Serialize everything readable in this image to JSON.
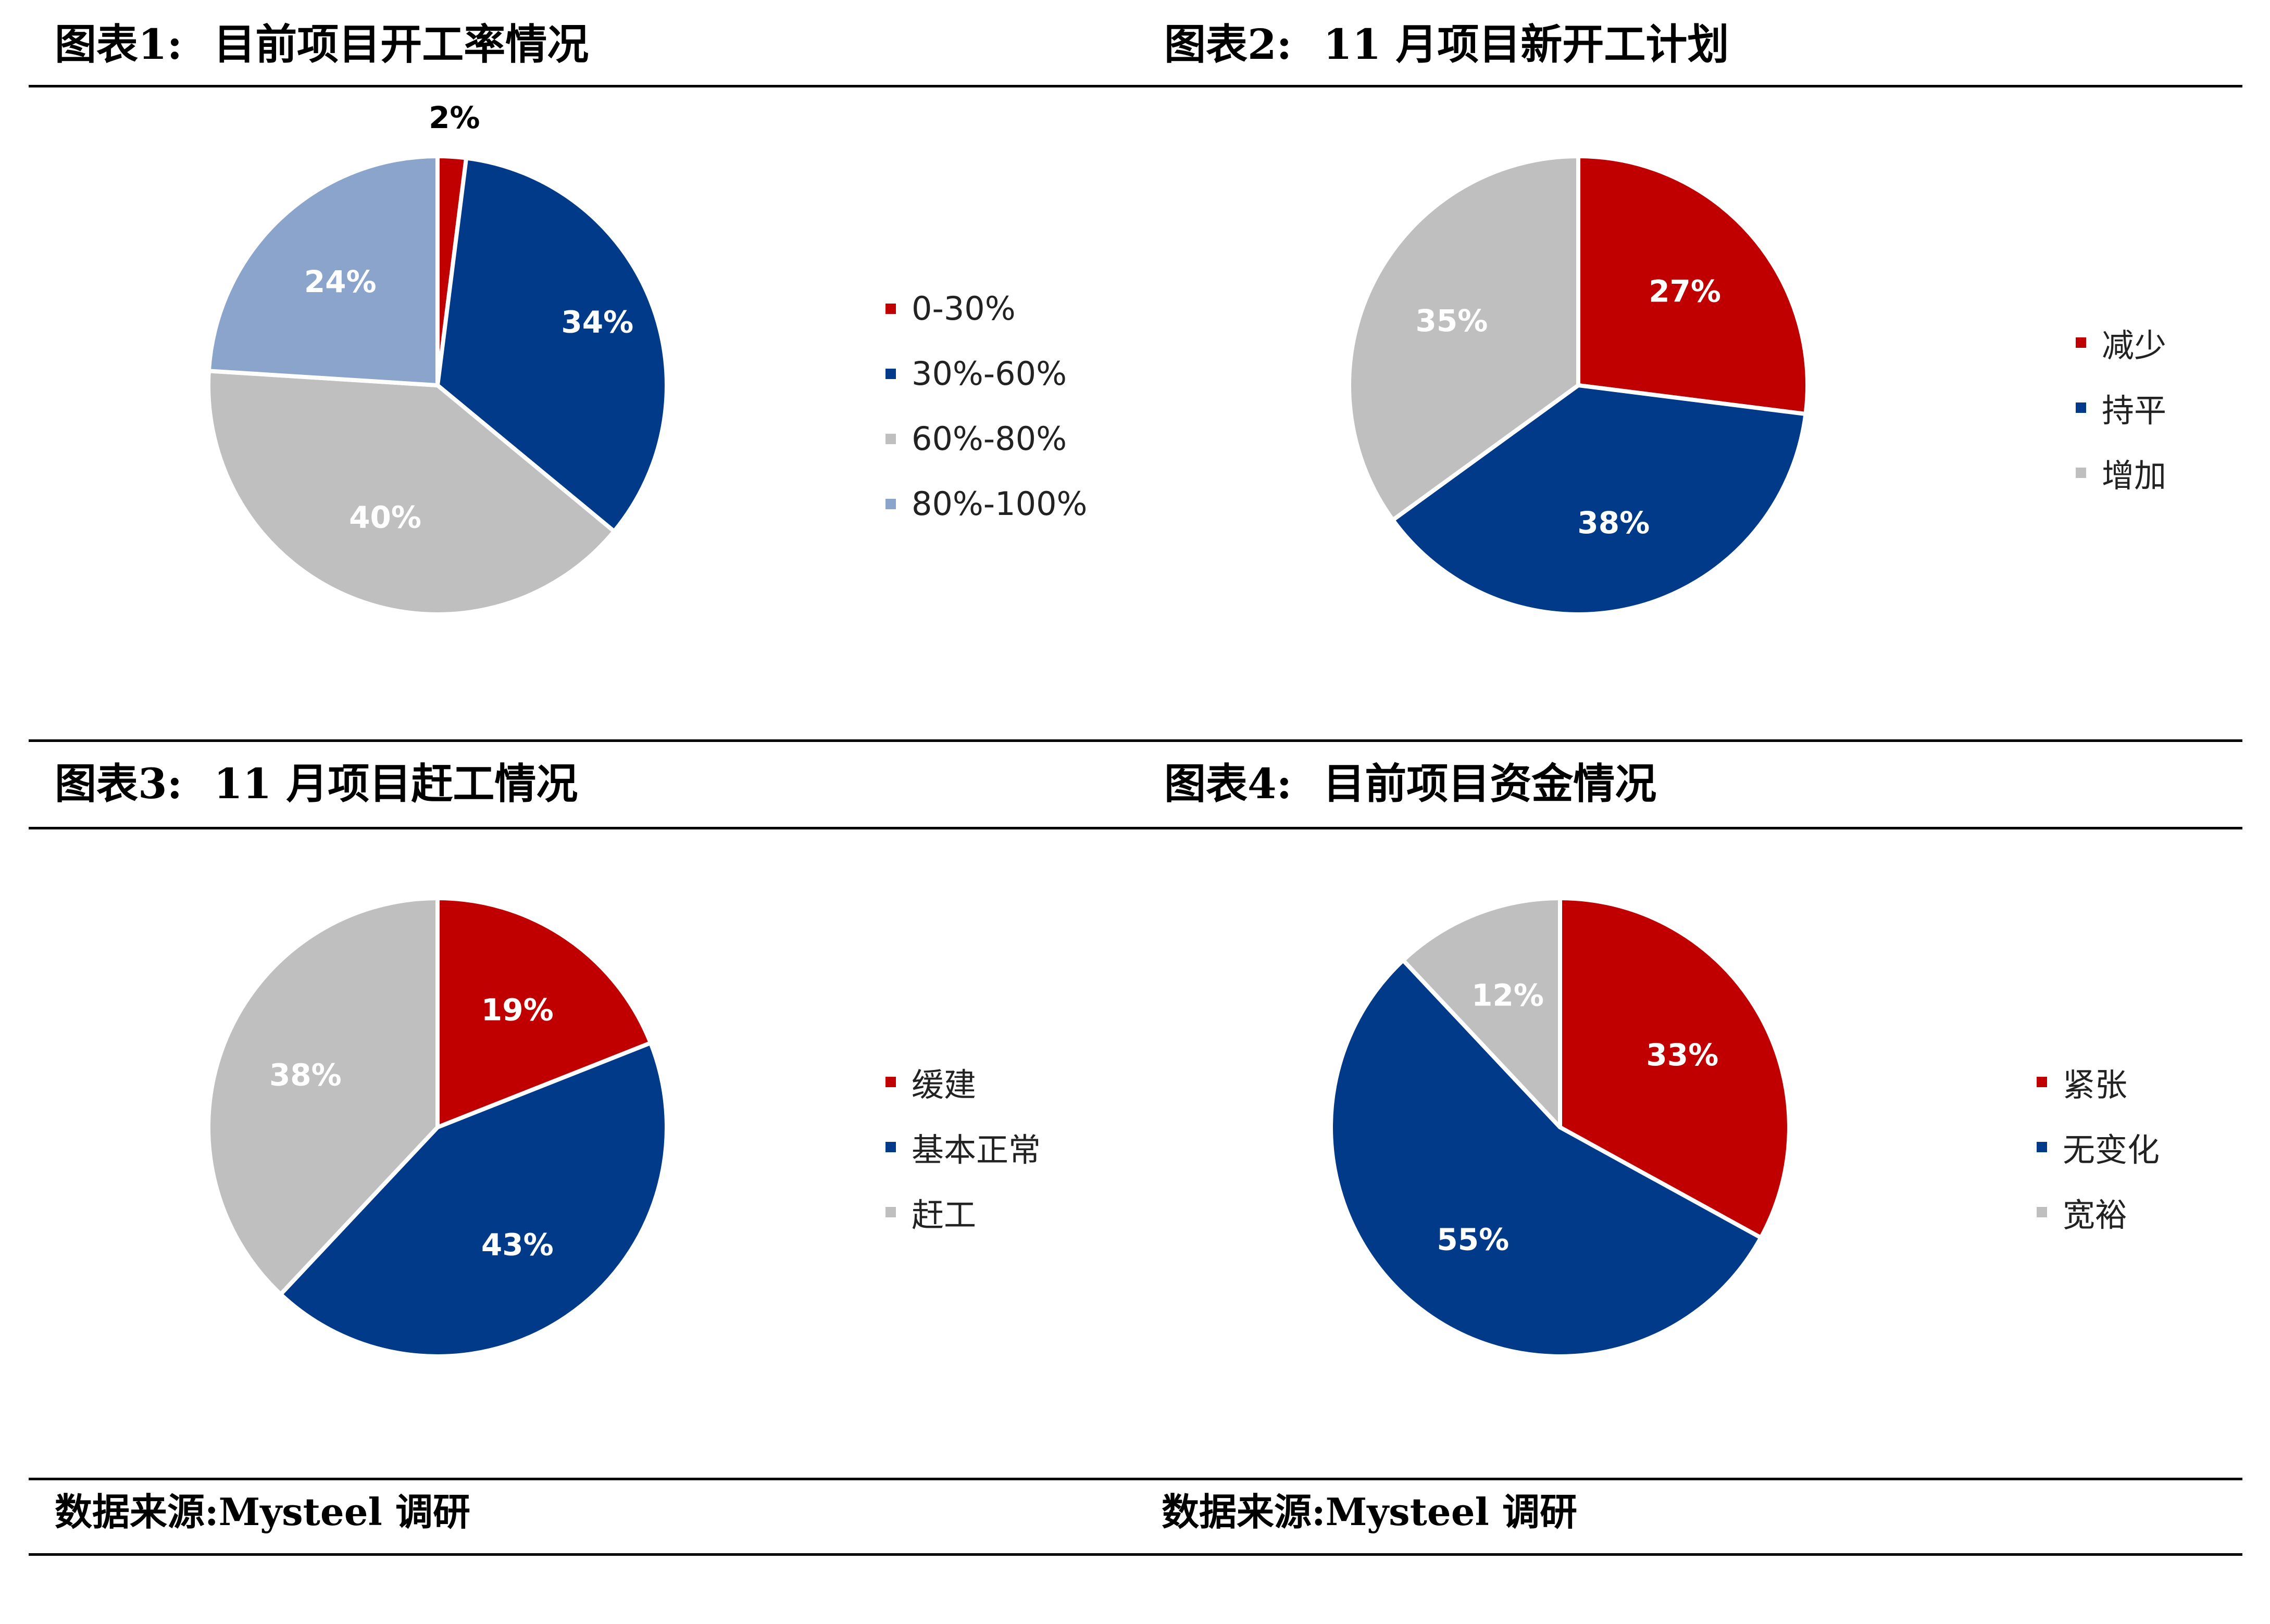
{
  "colors": {
    "red": "#c00000",
    "navy": "#003a88",
    "gray": "#bfbfbf",
    "lightblue": "#8aa4cb"
  },
  "chart_data": [
    {
      "type": "pie",
      "title_num": "图表1:",
      "title": "目前项目开工率情况",
      "categories": [
        "0-30%",
        "30%-60%",
        "60%-80%",
        "80%-100%"
      ],
      "values": [
        2,
        34,
        40,
        24
      ],
      "labels": [
        "2%",
        "34%",
        "40%",
        "24%"
      ],
      "colors": [
        "#c00000",
        "#003a88",
        "#bfbfbf",
        "#8aa4cb"
      ],
      "label_colors": [
        "#000000",
        "#ffffff",
        "#ffffff",
        "#ffffff"
      ],
      "legend": "right"
    },
    {
      "type": "pie",
      "title_num": "图表2:",
      "title": "11 月项目新开工计划",
      "categories": [
        "减少",
        "持平",
        "增加"
      ],
      "values": [
        27,
        38,
        35
      ],
      "labels": [
        "27%",
        "38%",
        "35%"
      ],
      "colors": [
        "#c00000",
        "#003a88",
        "#bfbfbf"
      ],
      "label_colors": [
        "#ffffff",
        "#ffffff",
        "#ffffff"
      ],
      "legend": "right"
    },
    {
      "type": "pie",
      "title_num": "图表3:",
      "title": "11 月项目赶工情况",
      "categories": [
        "缓建",
        "基本正常",
        "赶工"
      ],
      "values": [
        19,
        43,
        38
      ],
      "labels": [
        "19%",
        "43%",
        "38%"
      ],
      "colors": [
        "#c00000",
        "#003a88",
        "#bfbfbf"
      ],
      "label_colors": [
        "#ffffff",
        "#ffffff",
        "#ffffff"
      ],
      "legend": "right"
    },
    {
      "type": "pie",
      "title_num": "图表4:",
      "title": "目前项目资金情况",
      "categories": [
        "紧张",
        "无变化",
        "宽裕"
      ],
      "values": [
        33,
        55,
        12
      ],
      "labels": [
        "33%",
        "55%",
        "12%"
      ],
      "colors": [
        "#c00000",
        "#003a88",
        "#bfbfbf"
      ],
      "label_colors": [
        "#ffffff",
        "#ffffff",
        "#ffffff"
      ],
      "legend": "right"
    }
  ],
  "sources": {
    "left": "数据来源:Mysteel 调研",
    "right": "数据来源:Mysteel 调研"
  }
}
